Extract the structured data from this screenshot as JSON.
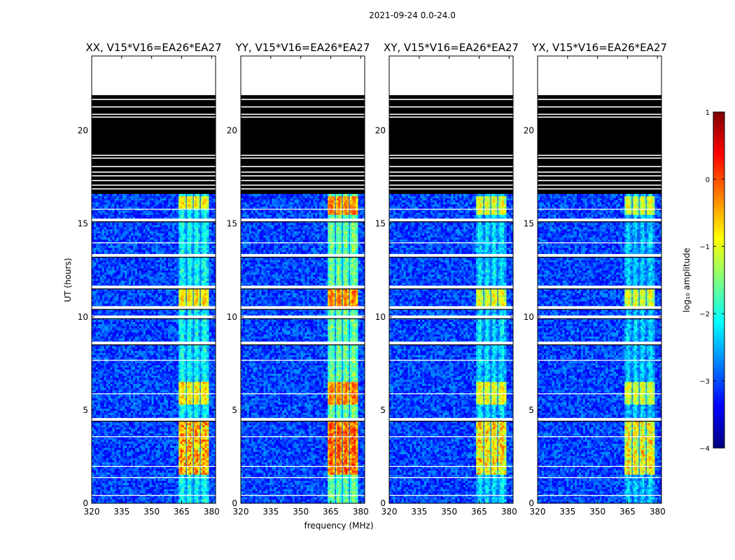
{
  "figure": {
    "suptitle": "2021-09-24 0.0-24.0",
    "xlabel": "frequency (MHz)",
    "ylabel": "UT (hours)"
  },
  "colorbar": {
    "label": "log₁₀ amplitude",
    "range": [
      -4,
      1
    ],
    "ticks": [
      1,
      0,
      -1,
      -2,
      -3,
      -4
    ],
    "tick_labels": [
      "1",
      "0",
      "−1",
      "−2",
      "−3",
      "−4"
    ],
    "colormap": "jet",
    "colors": [
      "#00007f",
      "#0000ff",
      "#007fff",
      "#00ffff",
      "#7fff7f",
      "#ffff00",
      "#ff7f00",
      "#ff0000",
      "#7f0000"
    ]
  },
  "chart_data": [
    {
      "type": "heatmap",
      "title": "XX, V15*V16=EA26*EA27",
      "xlim": [
        320,
        382
      ],
      "ylim": [
        0,
        24
      ],
      "xticks": [
        320,
        335,
        350,
        365,
        380
      ],
      "xtick_labels": [
        "320",
        "335",
        "350",
        "365",
        "380"
      ],
      "yticks": [
        0,
        5,
        10,
        15,
        20
      ],
      "ytick_labels": [
        "0",
        "5",
        "10",
        "15",
        "20"
      ],
      "rfi_band_mhz": [
        363.5,
        378.5
      ],
      "rfi_subbands_mhz": [
        [
          363.5,
          367.0
        ],
        [
          367.5,
          370.5
        ],
        [
          371.0,
          374.0
        ],
        [
          374.5,
          378.5
        ]
      ],
      "background_log_amp": -3.0,
      "band_log_amp": -1.5,
      "peak_log_amp": 0.0,
      "strong_hours": [
        [
          1.5,
          4.5
        ],
        [
          5.3,
          6.5
        ],
        [
          10.4,
          11.5
        ],
        [
          15.8,
          16.5
        ]
      ],
      "no_data_hours": [
        16.6,
        24.0
      ],
      "data_gaps_hours": [
        4.5,
        8.6,
        10.0,
        10.5,
        11.6,
        13.3,
        15.2
      ]
    },
    {
      "type": "heatmap",
      "title": "YY, V15*V16=EA26*EA27",
      "xlim": [
        320,
        382
      ],
      "ylim": [
        0,
        24
      ],
      "xticks": [
        320,
        335,
        350,
        365,
        380
      ],
      "xtick_labels": [
        "320",
        "335",
        "350",
        "365",
        "380"
      ],
      "yticks": [
        0,
        5,
        10,
        15,
        20
      ],
      "ytick_labels": [
        "0",
        "5",
        "10",
        "15",
        "20"
      ],
      "rfi_band_mhz": [
        363.5,
        378.5
      ],
      "rfi_subbands_mhz": [
        [
          363.5,
          367.0
        ],
        [
          367.5,
          370.5
        ],
        [
          371.0,
          374.0
        ],
        [
          374.5,
          378.5
        ]
      ],
      "background_log_amp": -3.0,
      "band_log_amp": -1.0,
      "peak_log_amp": 0.2,
      "strong_hours": [
        [
          1.5,
          4.5
        ],
        [
          5.3,
          6.5
        ],
        [
          10.4,
          11.5
        ],
        [
          15.5,
          16.5
        ]
      ],
      "no_data_hours": [
        16.6,
        24.0
      ],
      "data_gaps_hours": [
        4.5,
        8.6,
        10.0,
        10.5,
        11.6,
        13.3,
        15.2
      ]
    },
    {
      "type": "heatmap",
      "title": "XY, V15*V16=EA26*EA27",
      "xlim": [
        320,
        382
      ],
      "ylim": [
        0,
        24
      ],
      "xticks": [
        320,
        335,
        350,
        365,
        380
      ],
      "xtick_labels": [
        "320",
        "335",
        "350",
        "365",
        "380"
      ],
      "yticks": [
        0,
        5,
        10,
        15,
        20
      ],
      "ytick_labels": [
        "0",
        "5",
        "10",
        "15",
        "20"
      ],
      "rfi_band_mhz": [
        363.5,
        378.5
      ],
      "rfi_subbands_mhz": [
        [
          363.5,
          367.0
        ],
        [
          367.5,
          370.5
        ],
        [
          371.0,
          374.0
        ],
        [
          374.5,
          378.5
        ]
      ],
      "background_log_amp": -3.0,
      "band_log_amp": -1.7,
      "peak_log_amp": -0.3,
      "strong_hours": [
        [
          1.5,
          4.5
        ],
        [
          5.3,
          6.5
        ],
        [
          10.4,
          11.5
        ],
        [
          15.5,
          16.5
        ]
      ],
      "no_data_hours": [
        16.6,
        24.0
      ],
      "data_gaps_hours": [
        4.5,
        8.6,
        10.0,
        10.5,
        11.6,
        13.3,
        15.2
      ]
    },
    {
      "type": "heatmap",
      "title": "YX, V15*V16=EA26*EA27",
      "xlim": [
        320,
        382
      ],
      "ylim": [
        0,
        24
      ],
      "xticks": [
        320,
        335,
        350,
        365,
        380
      ],
      "xtick_labels": [
        "320",
        "335",
        "350",
        "365",
        "380"
      ],
      "yticks": [
        0,
        5,
        10,
        15,
        20
      ],
      "ytick_labels": [
        "0",
        "5",
        "10",
        "15",
        "20"
      ],
      "rfi_band_mhz": [
        363.5,
        378.5
      ],
      "rfi_subbands_mhz": [
        [
          363.5,
          367.0
        ],
        [
          367.5,
          370.5
        ],
        [
          371.0,
          374.0
        ],
        [
          374.5,
          378.5
        ]
      ],
      "background_log_amp": -3.0,
      "band_log_amp": -1.8,
      "peak_log_amp": -0.4,
      "strong_hours": [
        [
          1.5,
          4.5
        ],
        [
          5.3,
          6.5
        ],
        [
          10.4,
          11.5
        ],
        [
          15.5,
          16.5
        ]
      ],
      "no_data_hours": [
        16.6,
        24.0
      ],
      "data_gaps_hours": [
        4.5,
        8.6,
        10.0,
        10.5,
        11.6,
        13.3,
        15.2
      ]
    }
  ]
}
